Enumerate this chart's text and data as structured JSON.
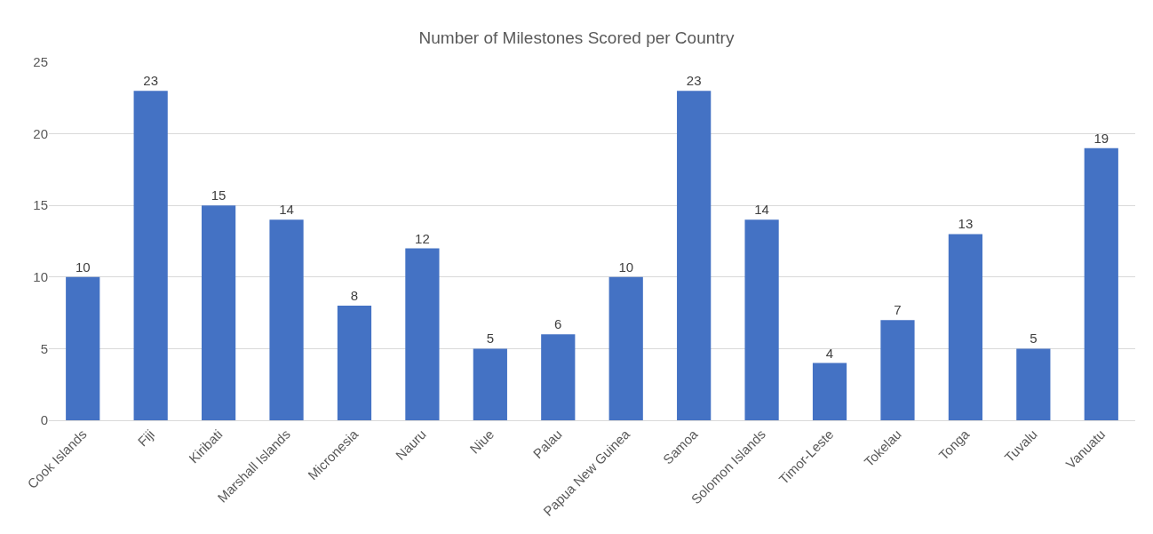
{
  "chart_data": {
    "type": "bar",
    "title": "Number of Milestones Scored per Country",
    "categories": [
      "Cook Islands",
      "Fiji",
      "Kiribati",
      "Marshall Islands",
      "Micronesia",
      "Nauru",
      "Niue",
      "Palau",
      "Papua New Guinea",
      "Samoa",
      "Solomon Islands",
      "Timor-Leste",
      "Tokelau",
      "Tonga",
      "Tuvalu",
      "Vanuatu"
    ],
    "values": [
      10,
      23,
      15,
      14,
      8,
      12,
      5,
      6,
      10,
      23,
      14,
      4,
      7,
      13,
      5,
      19
    ],
    "color": "#4472c4",
    "ylim": [
      0,
      25
    ],
    "yticks": [
      0,
      5,
      10,
      15,
      20,
      25
    ],
    "grid": "y",
    "data_labels": true
  }
}
